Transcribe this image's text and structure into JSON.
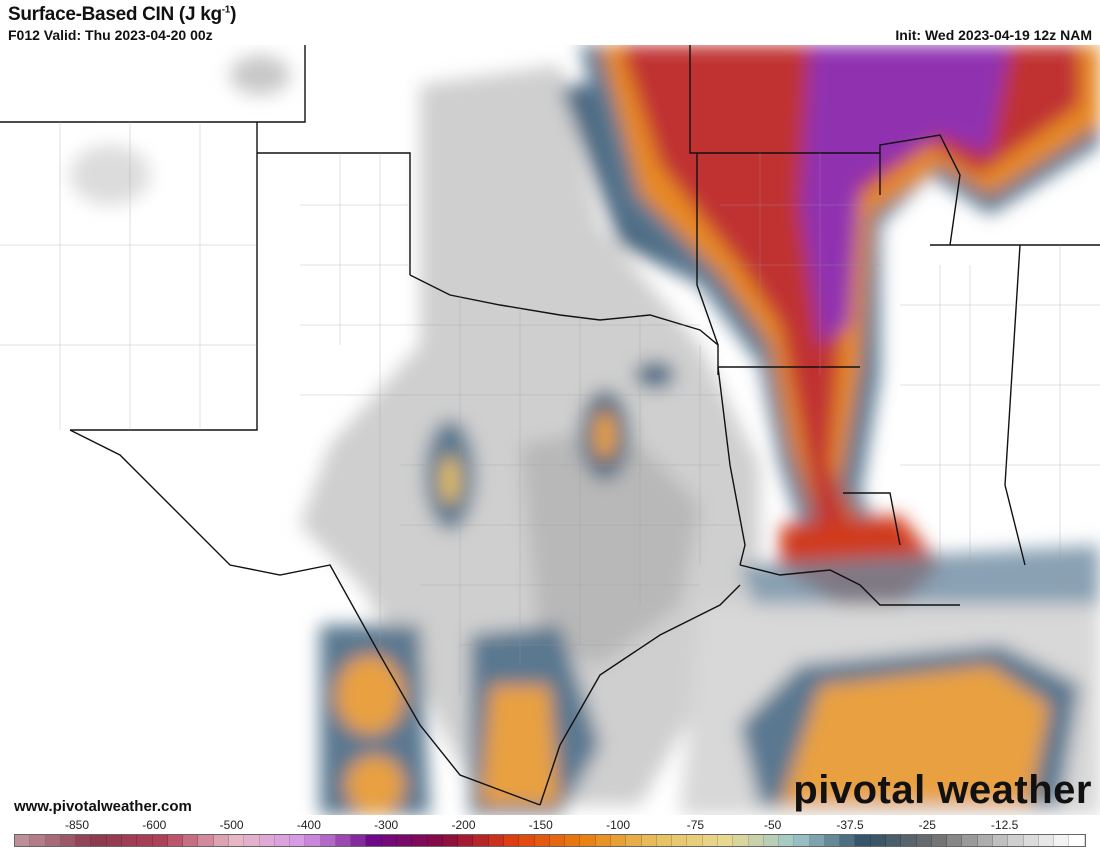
{
  "header": {
    "title": "Surface-Based CIN (J kg",
    "title_exp": "-1",
    "title_end": ")",
    "valid": "F012 Valid: Thu 2023-04-20 00z",
    "init": "Init: Wed 2023-04-19 12z NAM"
  },
  "footer": {
    "website": "www.pivotalweather.com",
    "logo_text": "pivotal weather"
  },
  "colorbar": {
    "labels": [
      "-850",
      "-600",
      "-500",
      "-400",
      "-300",
      "-200",
      "-150",
      "-100",
      "-75",
      "-50",
      "-37.5",
      "-25",
      "-12.5"
    ],
    "color_stops": [
      "#bf8f98",
      "#8a3a4c",
      "#b0405a",
      "#e8b8c4",
      "#d898e8",
      "#6e0a8a",
      "#8a0a40",
      "#e04010",
      "#e88010",
      "#e8c060",
      "#e8d890",
      "#a0c8cc",
      "#305068",
      "#707070",
      "#c8c8c8",
      "#ffffff"
    ],
    "cells": 70
  },
  "map": {
    "field": "Surface-Based CIN",
    "background": "#ffffff",
    "border_color": "#111111"
  }
}
